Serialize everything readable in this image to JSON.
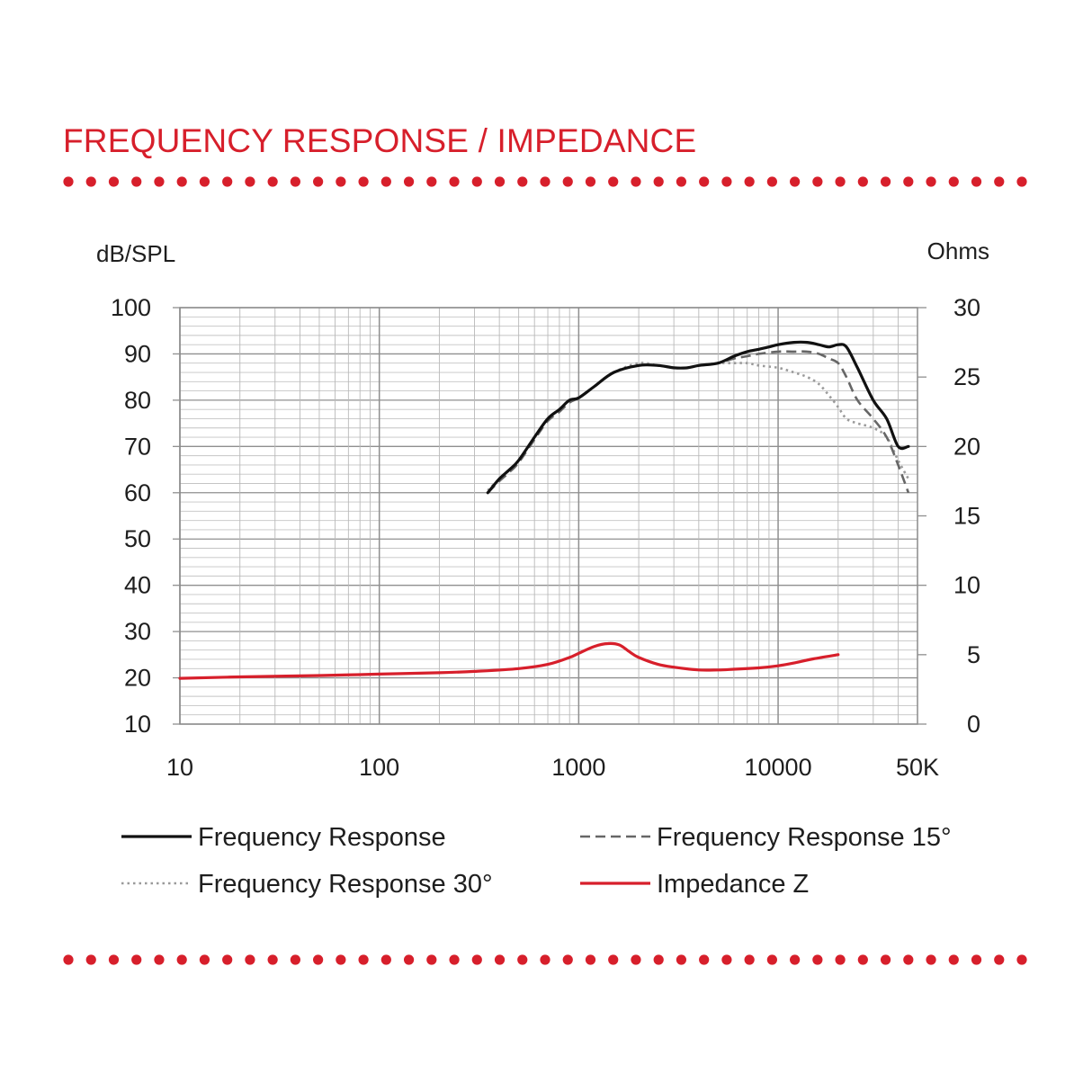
{
  "header": {
    "title": "FREQUENCY RESPONSE / IMPEDANCE"
  },
  "colors": {
    "accent": "#d71f2b",
    "black_curve": "#111111",
    "dashed_curve": "#666666",
    "dotted_curve": "#9a9a9a",
    "impedance_curve": "#d71f2b",
    "grid": "#b4b4b4"
  },
  "chart_data": {
    "type": "line",
    "ylabel_left": "dB/SPL",
    "ylabel_right": "Ohms",
    "x_scale": "log",
    "xlim": [
      10,
      50000
    ],
    "ylim_left": [
      10,
      100
    ],
    "ylim_right": [
      0,
      30
    ],
    "x_ticks": [
      {
        "value": 10,
        "label": "10"
      },
      {
        "value": 100,
        "label": "100"
      },
      {
        "value": 1000,
        "label": "1000"
      },
      {
        "value": 10000,
        "label": "10000"
      },
      {
        "value": 50000,
        "label": "50K"
      }
    ],
    "y_ticks_left": [
      100,
      90,
      80,
      70,
      60,
      50,
      40,
      30,
      20,
      10
    ],
    "y_ticks_right": [
      30,
      25,
      20,
      15,
      10,
      5,
      0
    ],
    "grid": true,
    "legend_position": "bottom",
    "series": [
      {
        "name": "Frequency Response",
        "axis": "left",
        "style": "solid",
        "color": "#111111",
        "x": [
          350,
          400,
          450,
          500,
          600,
          700,
          800,
          900,
          1000,
          1200,
          1500,
          2000,
          2500,
          3000,
          3500,
          4000,
          5000,
          6000,
          7000,
          8000,
          9000,
          10000,
          12000,
          14000,
          16000,
          18000,
          20000,
          22000,
          25000,
          30000,
          35000,
          40000,
          45000
        ],
        "y": [
          60,
          63,
          65,
          67,
          72,
          76,
          78,
          80,
          80.5,
          83,
          86,
          87.5,
          87.5,
          87,
          87,
          87.5,
          88,
          89.5,
          90.5,
          91,
          91.5,
          92,
          92.5,
          92.5,
          92,
          91.5,
          92,
          91.5,
          87,
          80,
          76,
          70,
          70
        ]
      },
      {
        "name": "Frequency Response 15°",
        "axis": "left",
        "style": "dashed",
        "color": "#666666",
        "x": [
          350,
          400,
          450,
          500,
          600,
          700,
          800,
          900,
          1000,
          1200,
          1500,
          2000,
          2500,
          3000,
          3500,
          4000,
          5000,
          6000,
          7000,
          8000,
          10000,
          12000,
          14000,
          16000,
          18000,
          20000,
          22000,
          25000,
          30000,
          35000,
          40000,
          45000
        ],
        "y": [
          60,
          62.5,
          64.5,
          66.5,
          71.5,
          75.5,
          77.5,
          79.5,
          80.5,
          83,
          86,
          87.5,
          87.5,
          87,
          87,
          87.5,
          88,
          89,
          89.5,
          90,
          90.5,
          90.5,
          90.5,
          90,
          89,
          88,
          85,
          80,
          76,
          72,
          66,
          60
        ]
      },
      {
        "name": "Frequency Response 30°",
        "axis": "left",
        "style": "dotted",
        "color": "#9a9a9a",
        "x": [
          350,
          400,
          450,
          500,
          600,
          700,
          800,
          900,
          1000,
          1200,
          1500,
          2000,
          2500,
          3000,
          3500,
          4000,
          5000,
          6000,
          7000,
          8000,
          10000,
          12000,
          14000,
          16000,
          18000,
          20000,
          22000,
          25000,
          30000,
          35000,
          40000,
          45000
        ],
        "y": [
          60.5,
          63,
          65,
          67,
          72,
          76,
          78,
          80,
          80.5,
          83,
          86,
          88,
          87.5,
          87,
          87,
          87.5,
          88,
          88,
          88,
          87.5,
          87,
          86,
          85,
          83.5,
          81,
          78.5,
          76,
          75,
          74,
          72,
          67,
          63
        ]
      },
      {
        "name": "Impedance Z",
        "axis": "right",
        "style": "solid",
        "color": "#d71f2b",
        "x": [
          10,
          20,
          50,
          100,
          200,
          300,
          500,
          700,
          900,
          1000,
          1200,
          1400,
          1600,
          1800,
          2000,
          2500,
          3000,
          4000,
          5000,
          6000,
          8000,
          10000,
          12000,
          15000,
          20000
        ],
        "y": [
          3.3,
          3.4,
          3.5,
          3.6,
          3.7,
          3.8,
          4.0,
          4.3,
          4.8,
          5.1,
          5.6,
          5.8,
          5.7,
          5.2,
          4.8,
          4.3,
          4.1,
          3.9,
          3.9,
          3.95,
          4.05,
          4.2,
          4.4,
          4.7,
          5.0
        ]
      }
    ]
  }
}
